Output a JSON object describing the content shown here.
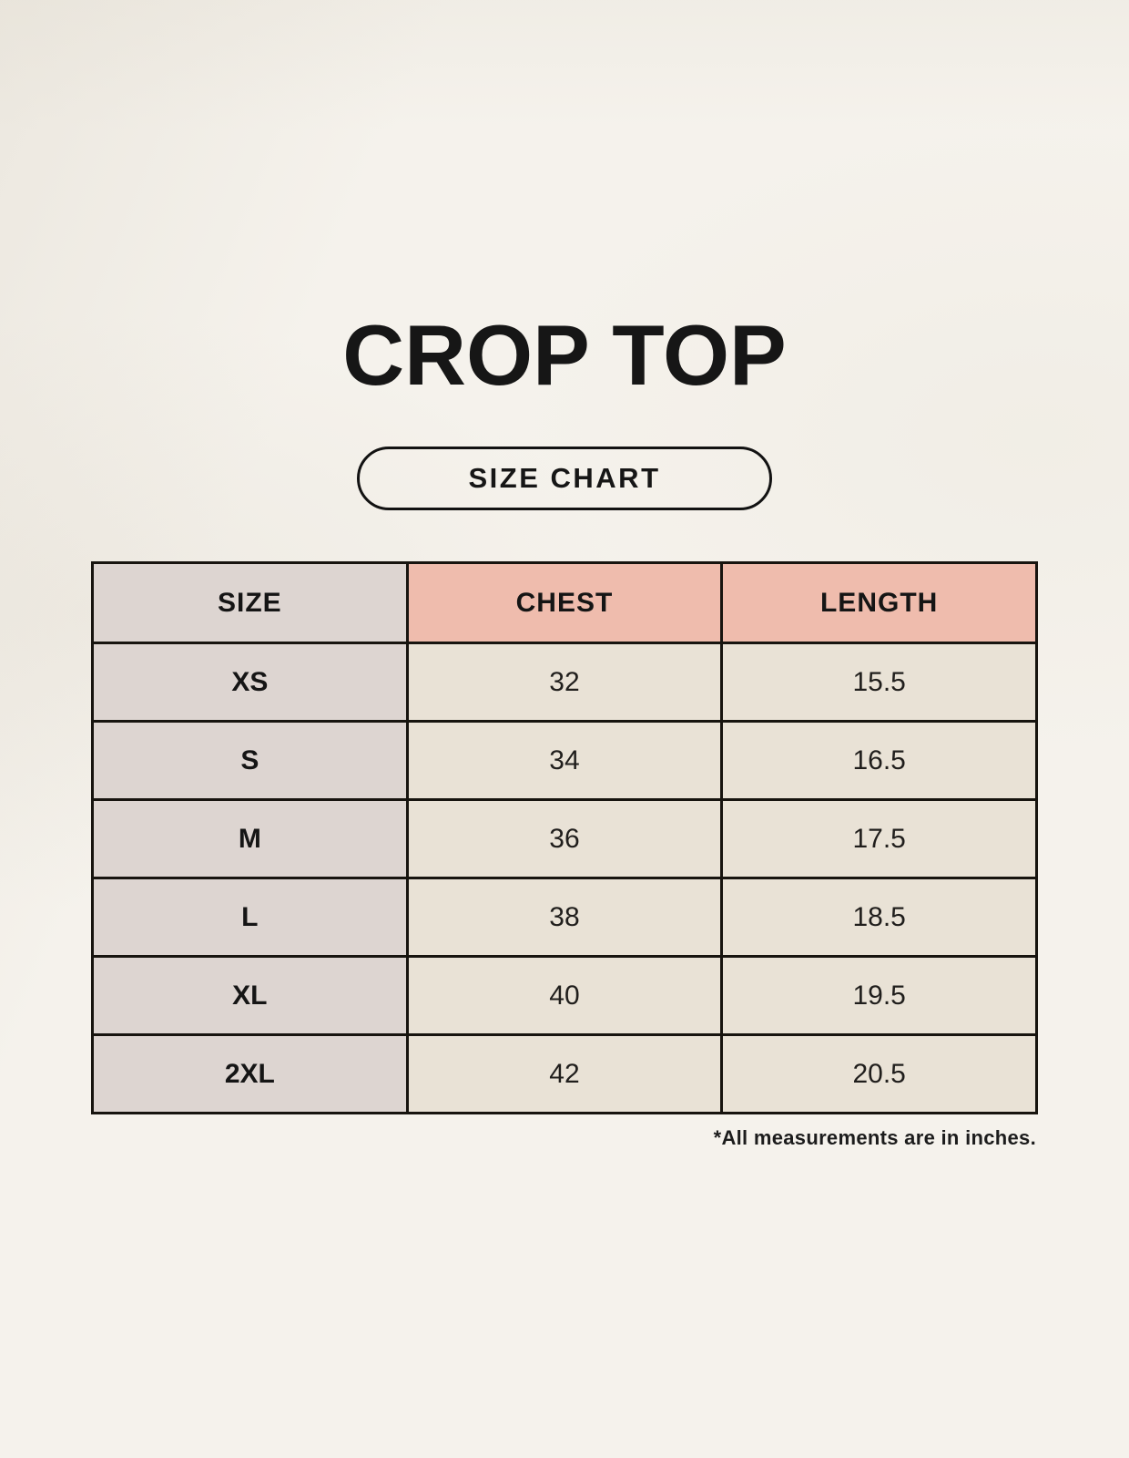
{
  "page": {
    "title": "CROP TOP",
    "badge_label": "SIZE CHART",
    "footnote": "*All measurements are in inches."
  },
  "chart_data": {
    "type": "table",
    "title": "CROP TOP",
    "subtitle": "SIZE CHART",
    "columns": [
      "SIZE",
      "CHEST",
      "LENGTH"
    ],
    "rows": [
      [
        "XS",
        "32",
        "15.5"
      ],
      [
        "S",
        "34",
        "16.5"
      ],
      [
        "M",
        "36",
        "17.5"
      ],
      [
        "L",
        "38",
        "18.5"
      ],
      [
        "XL",
        "40",
        "19.5"
      ],
      [
        "2XL",
        "42",
        "20.5"
      ]
    ],
    "units_note": "*All measurements are in inches.",
    "layout": {
      "header_measure_color": "#efbcad",
      "size_column_color": "#ddd5d1",
      "data_cell_color": "#e9e2d6",
      "border_color": "#17140f",
      "background_color": "#f5f2ec"
    }
  }
}
